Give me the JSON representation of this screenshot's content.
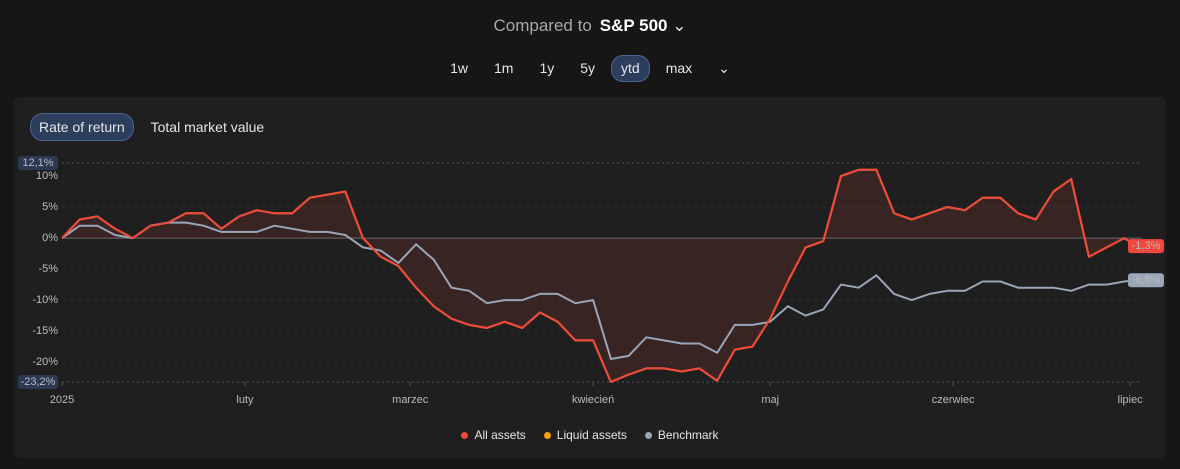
{
  "ui": {
    "compare_prefix": "Compared to",
    "compare_target": "S&P 500",
    "periods": [
      "1w",
      "1m",
      "1y",
      "5y",
      "ytd",
      "max"
    ],
    "active_period": 4,
    "tabs": [
      "Rate of return",
      "Total market value"
    ],
    "active_tab": 0
  },
  "chart_data": {
    "type": "line",
    "x": [
      0,
      3,
      6,
      9,
      12,
      15,
      18,
      21,
      24,
      27,
      30,
      33,
      36,
      39,
      42,
      45,
      48,
      51,
      54,
      57,
      60,
      63,
      66,
      69,
      72,
      75,
      78,
      81,
      84,
      87,
      90,
      93,
      96,
      99,
      102,
      105,
      108,
      111,
      114,
      117,
      120,
      123,
      126,
      129,
      132,
      135,
      138,
      141,
      144,
      147,
      150,
      153,
      156,
      159,
      162,
      165,
      168,
      171,
      174,
      177,
      180,
      182
    ],
    "xlim": [
      0,
      183
    ],
    "xticks": [
      {
        "value": 0,
        "label": "2025"
      },
      {
        "value": 31,
        "label": "luty"
      },
      {
        "value": 59,
        "label": "marzec"
      },
      {
        "value": 90,
        "label": "kwiecień"
      },
      {
        "value": 120,
        "label": "maj"
      },
      {
        "value": 151,
        "label": "czerwiec"
      },
      {
        "value": 181,
        "label": "lipiec"
      }
    ],
    "ylim": [
      -23.2,
      12.1
    ],
    "yticks": [
      {
        "value": 12.1,
        "label": "12,1%"
      },
      {
        "value": 10,
        "label": "10%"
      },
      {
        "value": 5,
        "label": "5%"
      },
      {
        "value": 0,
        "label": "0%"
      },
      {
        "value": -5,
        "label": "-5%"
      },
      {
        "value": -10,
        "label": "-10%"
      },
      {
        "value": -15,
        "label": "-15%"
      },
      {
        "value": -20,
        "label": "-20%"
      },
      {
        "value": -23.2,
        "label": "-23,2%"
      }
    ],
    "grid": true,
    "series": [
      {
        "name": "All assets",
        "color": "#f0483e",
        "values": [
          0,
          3,
          3.5,
          1.5,
          0,
          2,
          2.5,
          4,
          4,
          1.5,
          3.5,
          4.5,
          4,
          4,
          6.5,
          7,
          7.5,
          0,
          -3,
          -4.5,
          -8,
          -11,
          -13,
          -14,
          -14.5,
          -13.5,
          -14.5,
          -12,
          -13.5,
          -16.5,
          -16.5,
          -23.2,
          -22,
          -21,
          -21,
          -21.5,
          -21,
          -23,
          -18,
          -17.5,
          -13,
          -7,
          -1.5,
          -0.5,
          10,
          11,
          11,
          4,
          3,
          4,
          5,
          4.5,
          6.5,
          6.5,
          4,
          3,
          7.5,
          9.5,
          -3,
          -1.5,
          0,
          -1.3
        ],
        "value_labels": [
          null,
          null,
          null,
          null,
          null,
          null,
          null,
          null,
          null,
          null,
          null,
          null,
          null,
          null,
          null,
          null,
          null,
          null,
          null,
          null,
          null,
          null,
          null,
          null,
          null,
          null,
          null,
          null,
          null,
          null,
          null,
          null,
          null,
          null,
          null,
          null,
          null,
          null,
          null,
          null,
          null,
          null,
          null,
          null,
          null,
          null,
          null,
          null,
          null,
          null,
          null,
          null,
          null,
          null,
          null,
          null,
          null,
          null,
          null,
          null,
          null,
          "-1,3%"
        ]
      },
      {
        "name": "Liquid assets",
        "color": "#f59e0b",
        "values": [
          0,
          3,
          3.5,
          1.5,
          0,
          2,
          2.5,
          4,
          4,
          1.5,
          3.5,
          4.5,
          4,
          4,
          6.5,
          7,
          7.5,
          0,
          -3,
          -4.5,
          -8,
          -11,
          -13,
          -14,
          -14.5,
          -13.5,
          -14.5,
          -12,
          -13.5,
          -16.5,
          -16.5,
          -23.2,
          -22,
          -21,
          -21,
          -21.5,
          -21,
          -23,
          -18,
          -17.5,
          -13,
          -7,
          -1.5,
          -0.5,
          10,
          11,
          11,
          4,
          3,
          4,
          5,
          4.5,
          6.5,
          6.5,
          4,
          3,
          7.5,
          9.5,
          -3,
          -1.5,
          0,
          -1.3
        ]
      },
      {
        "name": "Benchmark",
        "color": "#9aa5b8",
        "values": [
          0,
          2,
          2,
          0.5,
          0,
          2,
          2.5,
          2.5,
          2,
          1,
          1,
          1,
          2,
          1.5,
          1,
          1,
          0.5,
          -1.5,
          -2,
          -4,
          -1,
          -3.5,
          -8,
          -8.5,
          -10.5,
          -10,
          -10,
          -9,
          -9,
          -10.5,
          -10,
          -19.5,
          -19,
          -16,
          -16.5,
          -17,
          -17,
          -18.5,
          -14,
          -14,
          -13.5,
          -11,
          -12.5,
          -11.5,
          -7.5,
          -8,
          -6,
          -9,
          -10,
          -9,
          -8.5,
          -8.5,
          -7,
          -7,
          -8,
          -8,
          -8,
          -8.5,
          -7.5,
          -7.5,
          -7,
          -6.8
        ],
        "value_labels": [
          null,
          null,
          null,
          null,
          null,
          null,
          null,
          null,
          null,
          null,
          null,
          null,
          null,
          null,
          null,
          null,
          null,
          null,
          null,
          null,
          null,
          null,
          null,
          null,
          null,
          null,
          null,
          null,
          null,
          null,
          null,
          null,
          null,
          null,
          null,
          null,
          null,
          null,
          null,
          null,
          null,
          null,
          null,
          null,
          null,
          null,
          null,
          null,
          null,
          null,
          null,
          null,
          null,
          null,
          null,
          null,
          null,
          null,
          null,
          null,
          null,
          "-6,8%"
        ]
      }
    ]
  }
}
